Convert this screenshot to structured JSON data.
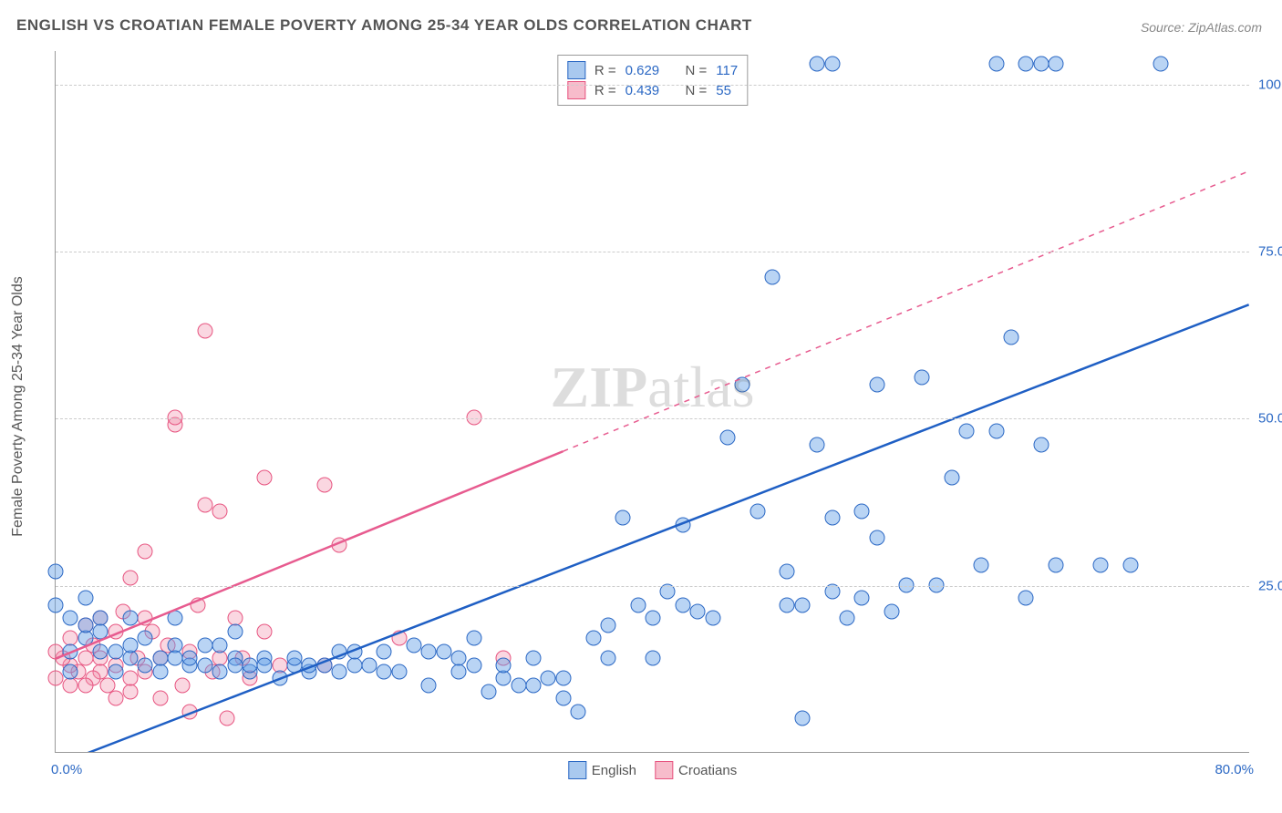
{
  "title": "ENGLISH VS CROATIAN FEMALE POVERTY AMONG 25-34 YEAR OLDS CORRELATION CHART",
  "source_label": "Source:",
  "source_value": "ZipAtlas.com",
  "y_axis_label": "Female Poverty Among 25-34 Year Olds",
  "watermark_bold": "ZIP",
  "watermark_rest": "atlas",
  "chart": {
    "type": "scatter",
    "xlim": [
      0,
      80
    ],
    "ylim": [
      0,
      105
    ],
    "x_tick_left": "0.0%",
    "x_tick_right": "80.0%",
    "y_ticks": [
      {
        "v": 25,
        "label": "25.0%"
      },
      {
        "v": 50,
        "label": "50.0%"
      },
      {
        "v": 75,
        "label": "75.0%"
      },
      {
        "v": 100,
        "label": "100.0%"
      }
    ],
    "grid_color": "#cccccc",
    "axis_color": "#999999",
    "background_color": "#ffffff",
    "series": [
      {
        "name": "English",
        "color_fill": "rgba(100,160,230,0.45)",
        "color_stroke": "#2b68c4",
        "marker_size": 17,
        "r_label": "R =",
        "r_value": "0.629",
        "n_label": "N =",
        "n_value": "117",
        "regression": {
          "x1": 0,
          "y1": -2,
          "x2": 80,
          "y2": 67,
          "dashed": false,
          "stroke": "#1f5fc4",
          "width": 2.5
        },
        "points": [
          [
            0,
            27
          ],
          [
            0,
            22
          ],
          [
            1,
            20
          ],
          [
            1,
            12
          ],
          [
            1,
            15
          ],
          [
            2,
            19
          ],
          [
            2,
            17
          ],
          [
            2,
            23
          ],
          [
            3,
            15
          ],
          [
            3,
            18
          ],
          [
            3,
            20
          ],
          [
            4,
            15
          ],
          [
            4,
            12
          ],
          [
            5,
            20
          ],
          [
            5,
            16
          ],
          [
            5,
            14
          ],
          [
            6,
            13
          ],
          [
            6,
            17
          ],
          [
            7,
            14
          ],
          [
            7,
            12
          ],
          [
            8,
            14
          ],
          [
            8,
            16
          ],
          [
            8,
            20
          ],
          [
            9,
            14
          ],
          [
            9,
            13
          ],
          [
            10,
            13
          ],
          [
            10,
            16
          ],
          [
            11,
            12
          ],
          [
            11,
            16
          ],
          [
            12,
            13
          ],
          [
            12,
            14
          ],
          [
            12,
            18
          ],
          [
            13,
            13
          ],
          [
            13,
            12
          ],
          [
            14,
            13
          ],
          [
            14,
            14
          ],
          [
            15,
            11
          ],
          [
            16,
            14
          ],
          [
            16,
            13
          ],
          [
            17,
            13
          ],
          [
            17,
            12
          ],
          [
            18,
            13
          ],
          [
            19,
            12
          ],
          [
            19,
            15
          ],
          [
            20,
            15
          ],
          [
            20,
            13
          ],
          [
            21,
            13
          ],
          [
            22,
            15
          ],
          [
            22,
            12
          ],
          [
            23,
            12
          ],
          [
            24,
            16
          ],
          [
            25,
            15
          ],
          [
            25,
            10
          ],
          [
            26,
            15
          ],
          [
            27,
            12
          ],
          [
            27,
            14
          ],
          [
            28,
            13
          ],
          [
            28,
            17
          ],
          [
            29,
            9
          ],
          [
            30,
            13
          ],
          [
            30,
            11
          ],
          [
            31,
            10
          ],
          [
            32,
            10
          ],
          [
            32,
            14
          ],
          [
            33,
            11
          ],
          [
            34,
            8
          ],
          [
            34,
            11
          ],
          [
            35,
            6
          ],
          [
            36,
            17
          ],
          [
            37,
            14
          ],
          [
            37,
            19
          ],
          [
            38,
            35
          ],
          [
            39,
            22
          ],
          [
            40,
            20
          ],
          [
            40,
            14
          ],
          [
            41,
            24
          ],
          [
            42,
            22
          ],
          [
            42,
            34
          ],
          [
            43,
            21
          ],
          [
            44,
            20
          ],
          [
            45,
            47
          ],
          [
            46,
            55
          ],
          [
            47,
            36
          ],
          [
            48,
            71
          ],
          [
            49,
            27
          ],
          [
            49,
            22
          ],
          [
            50,
            22
          ],
          [
            50,
            5
          ],
          [
            51,
            46
          ],
          [
            52,
            35
          ],
          [
            52,
            24
          ],
          [
            53,
            20
          ],
          [
            54,
            36
          ],
          [
            54,
            23
          ],
          [
            55,
            32
          ],
          [
            55,
            55
          ],
          [
            56,
            21
          ],
          [
            57,
            25
          ],
          [
            58,
            56
          ],
          [
            59,
            25
          ],
          [
            60,
            41
          ],
          [
            61,
            48
          ],
          [
            62,
            28
          ],
          [
            63,
            48
          ],
          [
            64,
            62
          ],
          [
            65,
            23
          ],
          [
            66,
            46
          ],
          [
            67,
            28
          ],
          [
            70,
            28
          ],
          [
            72,
            28
          ],
          [
            51,
            103
          ],
          [
            52,
            103
          ],
          [
            63,
            103
          ],
          [
            65,
            103
          ],
          [
            66,
            103
          ],
          [
            67,
            103
          ],
          [
            74,
            103
          ]
        ]
      },
      {
        "name": "Croatians",
        "color_fill": "rgba(240,140,170,0.35)",
        "color_stroke": "#e75480",
        "marker_size": 17,
        "r_label": "R =",
        "r_value": "0.439",
        "n_label": "N =",
        "n_value": "55",
        "regression": {
          "x1": 0,
          "y1": 14,
          "x2": 80,
          "y2": 87,
          "dashed_from_x": 34,
          "stroke": "#e75b8f",
          "width": 2.5
        },
        "points": [
          [
            0,
            15
          ],
          [
            0,
            11
          ],
          [
            0.5,
            14
          ],
          [
            1,
            13
          ],
          [
            1,
            10
          ],
          [
            1,
            17
          ],
          [
            1.5,
            12
          ],
          [
            2,
            14
          ],
          [
            2,
            10
          ],
          [
            2,
            19
          ],
          [
            2.5,
            11
          ],
          [
            2.5,
            16
          ],
          [
            3,
            12
          ],
          [
            3,
            20
          ],
          [
            3,
            14
          ],
          [
            3.5,
            10
          ],
          [
            4,
            13
          ],
          [
            4,
            8
          ],
          [
            4,
            18
          ],
          [
            4.5,
            21
          ],
          [
            5,
            11
          ],
          [
            5,
            26
          ],
          [
            5,
            9
          ],
          [
            5.5,
            14
          ],
          [
            6,
            12
          ],
          [
            6,
            30
          ],
          [
            6,
            20
          ],
          [
            6.5,
            18
          ],
          [
            7,
            8
          ],
          [
            7,
            14
          ],
          [
            7.5,
            16
          ],
          [
            8,
            50
          ],
          [
            8,
            49
          ],
          [
            8.5,
            10
          ],
          [
            9,
            15
          ],
          [
            9,
            6
          ],
          [
            9.5,
            22
          ],
          [
            10,
            37
          ],
          [
            10,
            63
          ],
          [
            10.5,
            12
          ],
          [
            11,
            14
          ],
          [
            11,
            36
          ],
          [
            11.5,
            5
          ],
          [
            12,
            20
          ],
          [
            12.5,
            14
          ],
          [
            13,
            11
          ],
          [
            14,
            41
          ],
          [
            14,
            18
          ],
          [
            15,
            13
          ],
          [
            18,
            40
          ],
          [
            18,
            13
          ],
          [
            19,
            31
          ],
          [
            23,
            17
          ],
          [
            28,
            50
          ],
          [
            30,
            14
          ]
        ]
      }
    ],
    "legend_bottom": [
      {
        "swatch": "blue",
        "label": "English"
      },
      {
        "swatch": "pink",
        "label": "Croatians"
      }
    ]
  }
}
